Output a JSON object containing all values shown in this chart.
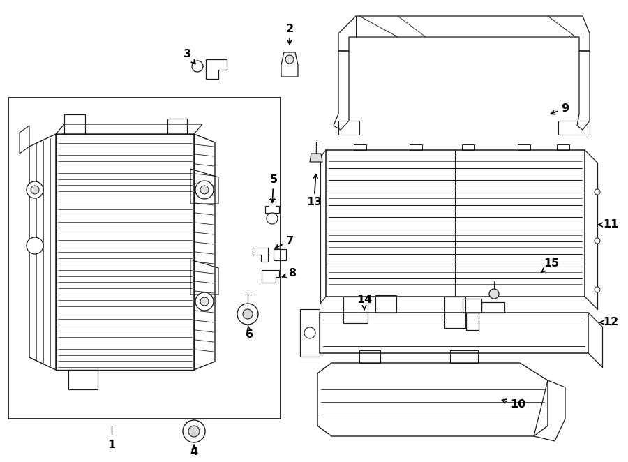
{
  "bg_color": "#ffffff",
  "line_color": "#1a1a1a",
  "label_color": "#000000",
  "figsize": [
    9.0,
    6.62
  ],
  "dpi": 100,
  "font_size": 11.5
}
